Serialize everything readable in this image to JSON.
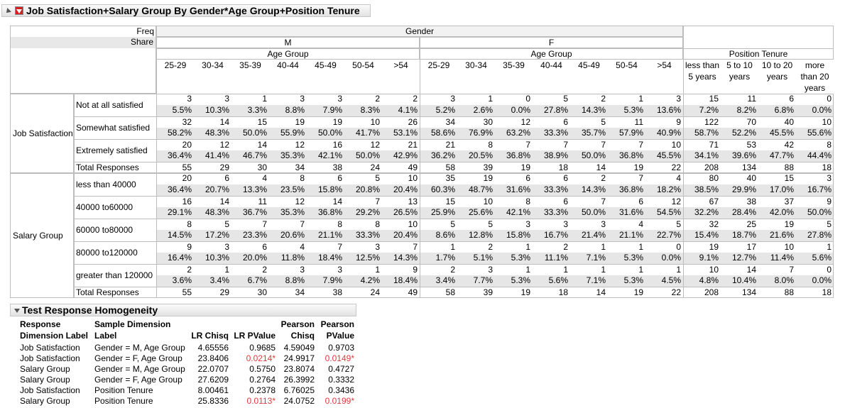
{
  "header": {
    "title": "Job Satisfaction+Salary Group By Gender*Age Group+Position Tenure"
  },
  "table": {
    "stat_labels": [
      "Freq",
      "Share"
    ],
    "gender": {
      "label": "Gender",
      "groups": [
        {
          "label": "M",
          "sublabel": "Age Group"
        },
        {
          "label": "F",
          "sublabel": "Age Group"
        }
      ],
      "columns": [
        "25-29",
        "30-34",
        "35-39",
        "40-44",
        "45-49",
        "50-54",
        ">54"
      ]
    },
    "tenure": {
      "label": "Position Tenure",
      "columns": [
        "less than 5 years",
        "5 to 10 years",
        "10 to 20 years",
        "more than 20 years"
      ]
    },
    "row_groups": [
      {
        "label": "Job Satisfaction",
        "levels": [
          {
            "label": "Not at all satisfied",
            "freq": [
              3,
              3,
              1,
              3,
              3,
              2,
              2,
              3,
              1,
              0,
              5,
              2,
              1,
              3,
              15,
              11,
              6,
              0
            ],
            "share": [
              "5.5%",
              "10.3%",
              "3.3%",
              "8.8%",
              "7.9%",
              "8.3%",
              "4.1%",
              "5.2%",
              "2.6%",
              "0.0%",
              "27.8%",
              "14.3%",
              "5.3%",
              "13.6%",
              "7.2%",
              "8.2%",
              "6.8%",
              "0.0%"
            ]
          },
          {
            "label": "Somewhat satisfied",
            "freq": [
              32,
              14,
              15,
              19,
              19,
              10,
              26,
              34,
              30,
              12,
              6,
              5,
              11,
              9,
              122,
              70,
              40,
              10
            ],
            "share": [
              "58.2%",
              "48.3%",
              "50.0%",
              "55.9%",
              "50.0%",
              "41.7%",
              "53.1%",
              "58.6%",
              "76.9%",
              "63.2%",
              "33.3%",
              "35.7%",
              "57.9%",
              "40.9%",
              "58.7%",
              "52.2%",
              "45.5%",
              "55.6%"
            ]
          },
          {
            "label": "Extremely satisfied",
            "freq": [
              20,
              12,
              14,
              12,
              16,
              12,
              21,
              21,
              8,
              7,
              7,
              7,
              7,
              10,
              71,
              53,
              42,
              8
            ],
            "share": [
              "36.4%",
              "41.4%",
              "46.7%",
              "35.3%",
              "42.1%",
              "50.0%",
              "42.9%",
              "36.2%",
              "20.5%",
              "36.8%",
              "38.9%",
              "50.0%",
              "36.8%",
              "45.5%",
              "34.1%",
              "39.6%",
              "47.7%",
              "44.4%"
            ]
          }
        ],
        "total_label": "Total Responses",
        "totals": [
          55,
          29,
          30,
          34,
          38,
          24,
          49,
          58,
          39,
          19,
          18,
          14,
          19,
          22,
          208,
          134,
          88,
          18
        ]
      },
      {
        "label": "Salary Group",
        "levels": [
          {
            "label": "less than 40000",
            "freq": [
              20,
              6,
              4,
              8,
              6,
              5,
              10,
              35,
              19,
              6,
              6,
              2,
              7,
              4,
              80,
              40,
              15,
              3
            ],
            "share": [
              "36.4%",
              "20.7%",
              "13.3%",
              "23.5%",
              "15.8%",
              "20.8%",
              "20.4%",
              "60.3%",
              "48.7%",
              "31.6%",
              "33.3%",
              "14.3%",
              "36.8%",
              "18.2%",
              "38.5%",
              "29.9%",
              "17.0%",
              "16.7%"
            ]
          },
          {
            "label": "40000 to60000",
            "freq": [
              16,
              14,
              11,
              12,
              14,
              7,
              13,
              15,
              10,
              8,
              6,
              7,
              6,
              12,
              67,
              38,
              37,
              9
            ],
            "share": [
              "29.1%",
              "48.3%",
              "36.7%",
              "35.3%",
              "36.8%",
              "29.2%",
              "26.5%",
              "25.9%",
              "25.6%",
              "42.1%",
              "33.3%",
              "50.0%",
              "31.6%",
              "54.5%",
              "32.2%",
              "28.4%",
              "42.0%",
              "50.0%"
            ]
          },
          {
            "label": "60000 to80000",
            "freq": [
              8,
              5,
              7,
              7,
              8,
              8,
              10,
              5,
              5,
              3,
              3,
              3,
              4,
              5,
              32,
              25,
              19,
              5
            ],
            "share": [
              "14.5%",
              "17.2%",
              "23.3%",
              "20.6%",
              "21.1%",
              "33.3%",
              "20.4%",
              "8.6%",
              "12.8%",
              "15.8%",
              "16.7%",
              "21.4%",
              "21.1%",
              "22.7%",
              "15.4%",
              "18.7%",
              "21.6%",
              "27.8%"
            ]
          },
          {
            "label": "80000 to120000",
            "freq": [
              9,
              3,
              6,
              4,
              7,
              3,
              7,
              1,
              2,
              1,
              2,
              1,
              1,
              0,
              19,
              17,
              10,
              1
            ],
            "share": [
              "16.4%",
              "10.3%",
              "20.0%",
              "11.8%",
              "18.4%",
              "12.5%",
              "14.3%",
              "1.7%",
              "5.1%",
              "5.3%",
              "11.1%",
              "7.1%",
              "5.3%",
              "0.0%",
              "9.1%",
              "12.7%",
              "11.4%",
              "5.6%"
            ]
          },
          {
            "label": "greater than 120000",
            "freq": [
              2,
              1,
              2,
              3,
              3,
              1,
              9,
              2,
              3,
              1,
              1,
              1,
              1,
              1,
              10,
              14,
              7,
              0
            ],
            "share": [
              "3.6%",
              "3.4%",
              "6.7%",
              "8.8%",
              "7.9%",
              "4.2%",
              "18.4%",
              "3.4%",
              "7.7%",
              "5.3%",
              "5.6%",
              "7.1%",
              "5.3%",
              "4.5%",
              "4.8%",
              "10.4%",
              "8.0%",
              "0.0%"
            ]
          }
        ],
        "total_label": "Total Responses",
        "totals": [
          55,
          29,
          30,
          34,
          38,
          24,
          49,
          58,
          39,
          19,
          18,
          14,
          19,
          22,
          208,
          134,
          88,
          18
        ]
      }
    ]
  },
  "test": {
    "title": "Test Response Homogeneity",
    "columns": [
      "Response Dimension Label",
      "Sample Dimension Label",
      "LR Chisq",
      "LR PValue",
      "Pearson Chisq",
      "Pearson PValue"
    ],
    "rows": [
      [
        "Job Satisfaction",
        "Gender = M, Age Group",
        "4.65556",
        "0.9685",
        "4.59049",
        "0.9703"
      ],
      [
        "Job Satisfaction",
        "Gender = F, Age Group",
        "23.8406",
        "0.0214*",
        "24.9917",
        "0.0149*"
      ],
      [
        "Salary Group",
        "Gender = M, Age Group",
        "22.0707",
        "0.5750",
        "23.8074",
        "0.4727"
      ],
      [
        "Salary Group",
        "Gender = F, Age Group",
        "27.6209",
        "0.2764",
        "26.3992",
        "0.3332"
      ],
      [
        "Job Satisfaction",
        "Position Tenure",
        "8.00461",
        "0.2378",
        "6.76025",
        "0.3436"
      ],
      [
        "Salary Group",
        "Position Tenure",
        "25.8336",
        "0.0113*",
        "24.0752",
        "0.0199*"
      ]
    ]
  }
}
